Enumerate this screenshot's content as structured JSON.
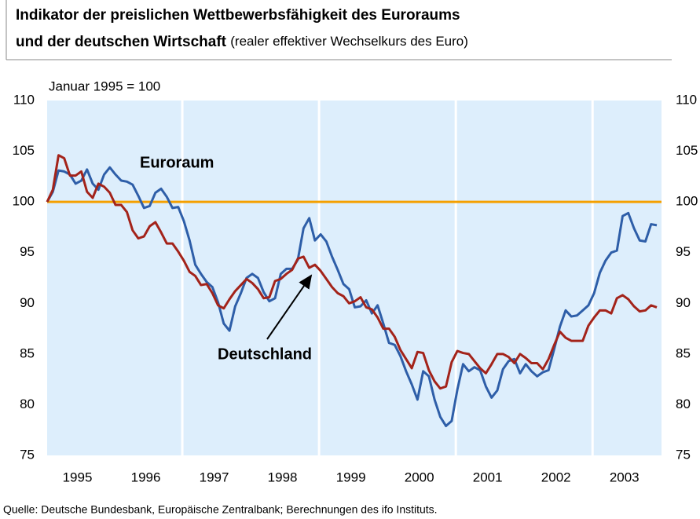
{
  "chart_data": {
    "type": "line",
    "title": "Indikator der preislichen Wettbewerbsfähigkeit des Euroraums",
    "title_line2": "und der deutschen Wirtschaft",
    "subtitle": "(realer effektiver Wechselkurs des Euro)",
    "y_label": "Januar 1995 = 100",
    "source": "Quelle: Deutsche Bundesbank, Europäische Zentralbank; Berechnungen des ifo Instituts.",
    "categories": [
      null,
      null,
      null,
      null,
      null,
      null,
      "1995",
      null,
      null,
      null,
      null,
      null,
      null,
      null,
      null,
      null,
      null,
      null,
      "1996",
      null,
      null,
      null,
      null,
      null,
      null,
      null,
      null,
      null,
      null,
      null,
      "1997",
      null,
      null,
      null,
      null,
      null,
      null,
      null,
      null,
      null,
      null,
      null,
      "1998",
      null,
      null,
      null,
      null,
      null,
      null,
      null,
      null,
      null,
      null,
      null,
      "1999",
      null,
      null,
      null,
      null,
      null,
      null,
      null,
      null,
      null,
      null,
      null,
      "2000",
      null,
      null,
      null,
      null,
      null,
      null,
      null,
      null,
      null,
      null,
      null,
      "2001",
      null,
      null,
      null,
      null,
      null,
      null,
      null,
      null,
      null,
      null,
      null,
      "2002",
      null,
      null,
      null,
      null,
      null,
      null,
      null,
      null,
      null,
      null,
      null,
      "2003",
      null,
      null,
      null,
      null,
      null
    ],
    "series": [
      {
        "name": "Euroraum",
        "color": "#2e5ea8",
        "values": [
          100,
          101,
          103.1,
          103,
          102.7,
          101.8,
          102.1,
          103.2,
          101.8,
          101.2,
          102.7,
          103.4,
          102.7,
          102.1,
          102,
          101.7,
          100.6,
          99.4,
          99.6,
          100.9,
          101.3,
          100.5,
          99.4,
          99.5,
          98.1,
          96.2,
          93.8,
          92.9,
          92.1,
          91.6,
          90.1,
          88,
          87.3,
          89.7,
          91,
          92.5,
          92.9,
          92.5,
          91.1,
          90.2,
          90.5,
          92.9,
          93.4,
          93.4,
          94.3,
          97.4,
          98.4,
          96.2,
          96.8,
          96.1,
          94.6,
          93.3,
          91.9,
          91.4,
          89.6,
          89.7,
          90.3,
          89,
          89.8,
          88,
          86.1,
          85.9,
          84.8,
          83.3,
          82,
          80.5,
          83.3,
          82.8,
          80.5,
          78.8,
          77.9,
          78.4,
          81.5,
          84,
          83.3,
          83.7,
          83.4,
          81.8,
          80.7,
          81.4,
          83.5,
          84.3,
          84.5,
          83.1,
          84,
          83.3,
          82.8,
          83.2,
          83.4,
          85.5,
          87.7,
          89.3,
          88.7,
          88.8,
          89.3,
          89.8,
          91,
          93,
          94.2,
          95,
          95.2,
          98.6,
          98.9,
          97.4,
          96.2,
          96.1,
          97.8,
          97.7
        ]
      },
      {
        "name": "Deutschland",
        "color": "#a3231a",
        "values": [
          100,
          101.2,
          104.6,
          104.3,
          102.6,
          102.6,
          103,
          101,
          100.4,
          101.8,
          101.5,
          100.9,
          99.7,
          99.7,
          99,
          97.2,
          96.4,
          96.6,
          97.6,
          98,
          97,
          95.9,
          95.9,
          95.1,
          94.2,
          93.1,
          92.7,
          91.8,
          91.9,
          91,
          89.8,
          89.5,
          90.4,
          91.2,
          91.8,
          92.4,
          92,
          91.4,
          90.5,
          90.6,
          92.2,
          92.4,
          92.9,
          93.3,
          94.4,
          94.6,
          93.5,
          93.8,
          93.2,
          92.4,
          91.6,
          91,
          90.7,
          90,
          90.2,
          90.6,
          89.6,
          89.4,
          88.6,
          87.5,
          87.5,
          86.7,
          85.4,
          84.5,
          83.6,
          85.2,
          85.1,
          83.4,
          82.3,
          81.6,
          81.8,
          84.2,
          85.3,
          85.1,
          85,
          84.3,
          83.6,
          83.1,
          84,
          85,
          85,
          84.7,
          84.1,
          85,
          84.6,
          84.1,
          84.1,
          83.5,
          84.5,
          85.9,
          87.2,
          86.6,
          86.3,
          86.3,
          86.3,
          87.8,
          88.6,
          89.3,
          89.3,
          89,
          90.5,
          90.8,
          90.4,
          89.7,
          89.2,
          89.3,
          89.8,
          89.6
        ]
      }
    ],
    "reference_line": {
      "value": 100,
      "color": "#f5a000"
    },
    "ylim": [
      75,
      110
    ],
    "yticks": [
      75,
      80,
      85,
      90,
      95,
      100,
      105,
      110
    ],
    "y2lim": [
      75,
      110
    ],
    "y2ticks": [
      75,
      80,
      85,
      90,
      95,
      100,
      105,
      110
    ],
    "plot_background": "#ddeefc"
  }
}
